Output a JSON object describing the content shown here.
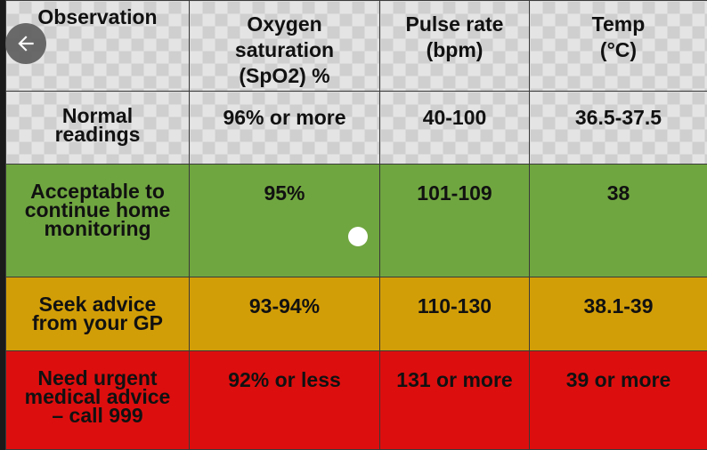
{
  "table": {
    "header": {
      "observation": "Observation",
      "oxygen": "Oxygen\nsaturation\n(SpO2) %",
      "pulse": "Pulse rate\n(bpm)",
      "temp": "Temp\n(°C)"
    },
    "rows": [
      {
        "label": "Normal\nreadings",
        "oxygen": "96% or more",
        "pulse": "40-100",
        "temp": "36.5-37.5",
        "color": "#e4e4e4"
      },
      {
        "label": "Acceptable to\ncontinue home\nmonitoring",
        "oxygen": "95%",
        "pulse": "101-109",
        "temp": "38",
        "color": "#70a640"
      },
      {
        "label": "Seek advice\nfrom your GP",
        "oxygen": "93-94%",
        "pulse": "110-130",
        "temp": "38.1-39",
        "color": "#d29e08"
      },
      {
        "label": "Need urgent\nmedical advice\n– call 999",
        "oxygen": "92% or less",
        "pulse": "131 or more",
        "temp": "39 or more",
        "color": "#dd0e0e"
      }
    ]
  },
  "overlay": {
    "back_icon": "arrow-left-icon",
    "touch_indicator": "touch-dot"
  }
}
